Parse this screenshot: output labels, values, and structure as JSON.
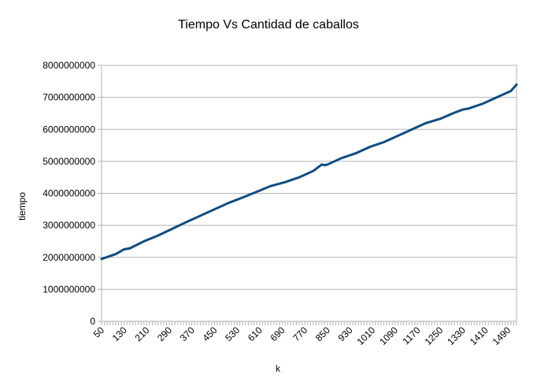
{
  "chart_data": {
    "type": "line",
    "title": "Tiempo Vs Cantidad de caballos",
    "xlabel": "k",
    "ylabel": "tiempo",
    "xlim": [
      50,
      1520
    ],
    "ylim": [
      0,
      8000000000
    ],
    "y_ticks": [
      "0",
      "1000000000",
      "2000000000",
      "3000000000",
      "4000000000",
      "5000000000",
      "6000000000",
      "7000000000",
      "8000000000"
    ],
    "x_ticks": [
      50,
      130,
      210,
      290,
      370,
      450,
      530,
      610,
      690,
      770,
      850,
      930,
      1010,
      1090,
      1170,
      1250,
      1330,
      1410,
      1490
    ],
    "grid": true,
    "legend": "none",
    "series": [
      {
        "color": "#0f4c81",
        "x": [
          50,
          100,
          130,
          150,
          200,
          250,
          300,
          350,
          400,
          450,
          500,
          550,
          600,
          650,
          700,
          750,
          800,
          830,
          840,
          850,
          900,
          950,
          1000,
          1050,
          1100,
          1150,
          1200,
          1250,
          1300,
          1330,
          1350,
          1400,
          1450,
          1500,
          1520
        ],
        "values": [
          1950000000,
          2100000000,
          2250000000,
          2280000000,
          2500000000,
          2680000000,
          2890000000,
          3100000000,
          3300000000,
          3500000000,
          3700000000,
          3870000000,
          4050000000,
          4230000000,
          4350000000,
          4500000000,
          4700000000,
          4900000000,
          4880000000,
          4900000000,
          5100000000,
          5250000000,
          5450000000,
          5600000000,
          5800000000,
          6000000000,
          6200000000,
          6330000000,
          6520000000,
          6620000000,
          6650000000,
          6800000000,
          7000000000,
          7200000000,
          7400000000
        ]
      }
    ]
  }
}
